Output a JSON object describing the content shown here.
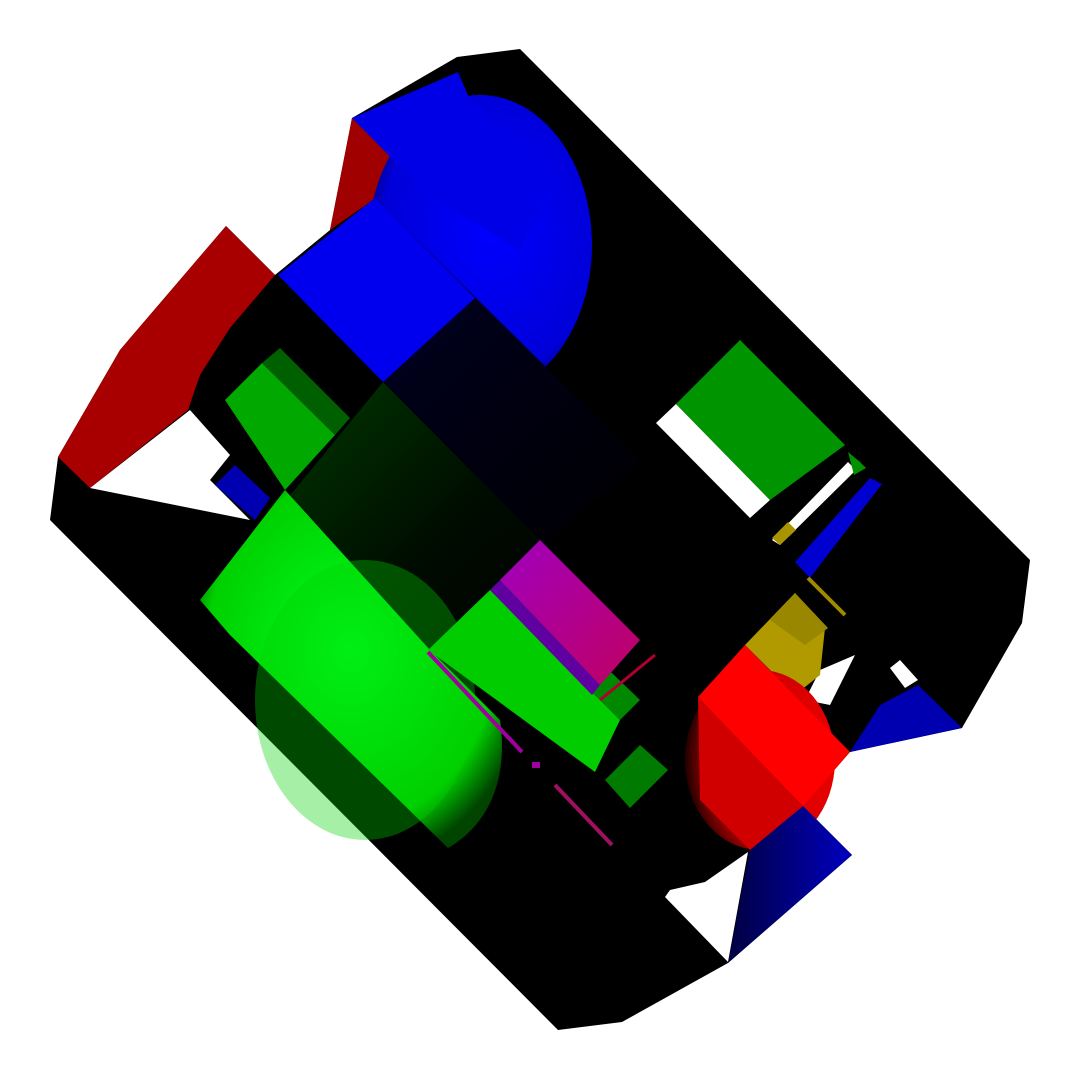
{
  "scene": {
    "background": "#ffffff",
    "palette": {
      "frame": "#000000",
      "red": "#a80000",
      "red_bright": "#ff0000",
      "blue": "#0000e6",
      "blue_dark": "#0000aa",
      "green": "#00e600",
      "green_dark": "#008f00",
      "magenta": "#b000b0",
      "yellow": "#b09a00"
    }
  }
}
